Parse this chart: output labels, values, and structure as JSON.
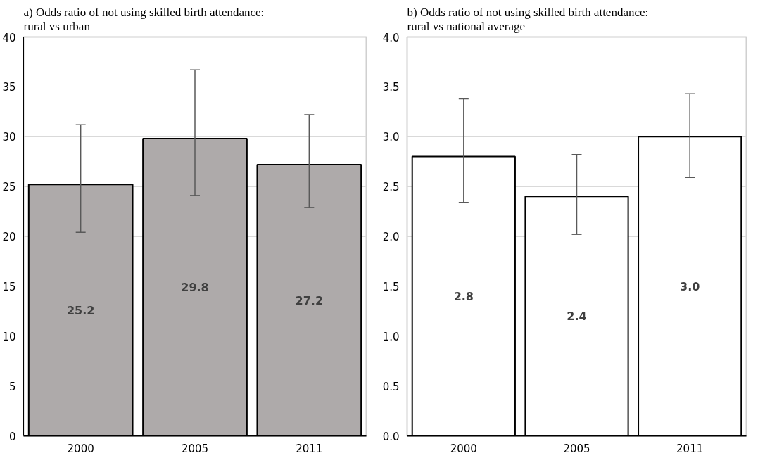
{
  "chart_data": [
    {
      "type": "bar",
      "title": "a) Odds ratio of not using skilled birth attendance: rural vs urban",
      "categories": [
        "2000",
        "2005",
        "2011"
      ],
      "values": [
        25.2,
        29.8,
        27.2
      ],
      "color": "#aeaaaa",
      "errors": [
        [
          20.4,
          31.2
        ],
        [
          24.1,
          36.7
        ],
        [
          22.9,
          32.2
        ]
      ],
      "ylim": [
        0,
        40
      ],
      "yticks": [
        0,
        5,
        10,
        15,
        20,
        25,
        30,
        35,
        40
      ],
      "grid": "y",
      "value_labels": [
        "25.2",
        "29.8",
        "27.2"
      ]
    },
    {
      "type": "bar",
      "title": "b) Odds ratio of not using skilled birth attendance: rural vs national average",
      "categories": [
        "2000",
        "2005",
        "2011"
      ],
      "values": [
        2.8,
        2.4,
        3.0
      ],
      "color": "#ffffff",
      "errors": [
        [
          2.34,
          3.38
        ],
        [
          2.02,
          2.82
        ],
        [
          2.59,
          3.43
        ]
      ],
      "ylim": [
        0,
        4
      ],
      "yticks": [
        {
          "value": 0,
          "label": "0.0"
        },
        0.5,
        {
          "value": 1,
          "label": "1.0"
        },
        1.5,
        {
          "value": 2,
          "label": "2.0"
        },
        2.5,
        {
          "value": 3,
          "label": "3.0"
        },
        3.5,
        {
          "value": 4,
          "label": "4.0"
        }
      ],
      "grid": "y",
      "value_labels": [
        "2.8",
        "2.4",
        "3.0"
      ]
    }
  ]
}
